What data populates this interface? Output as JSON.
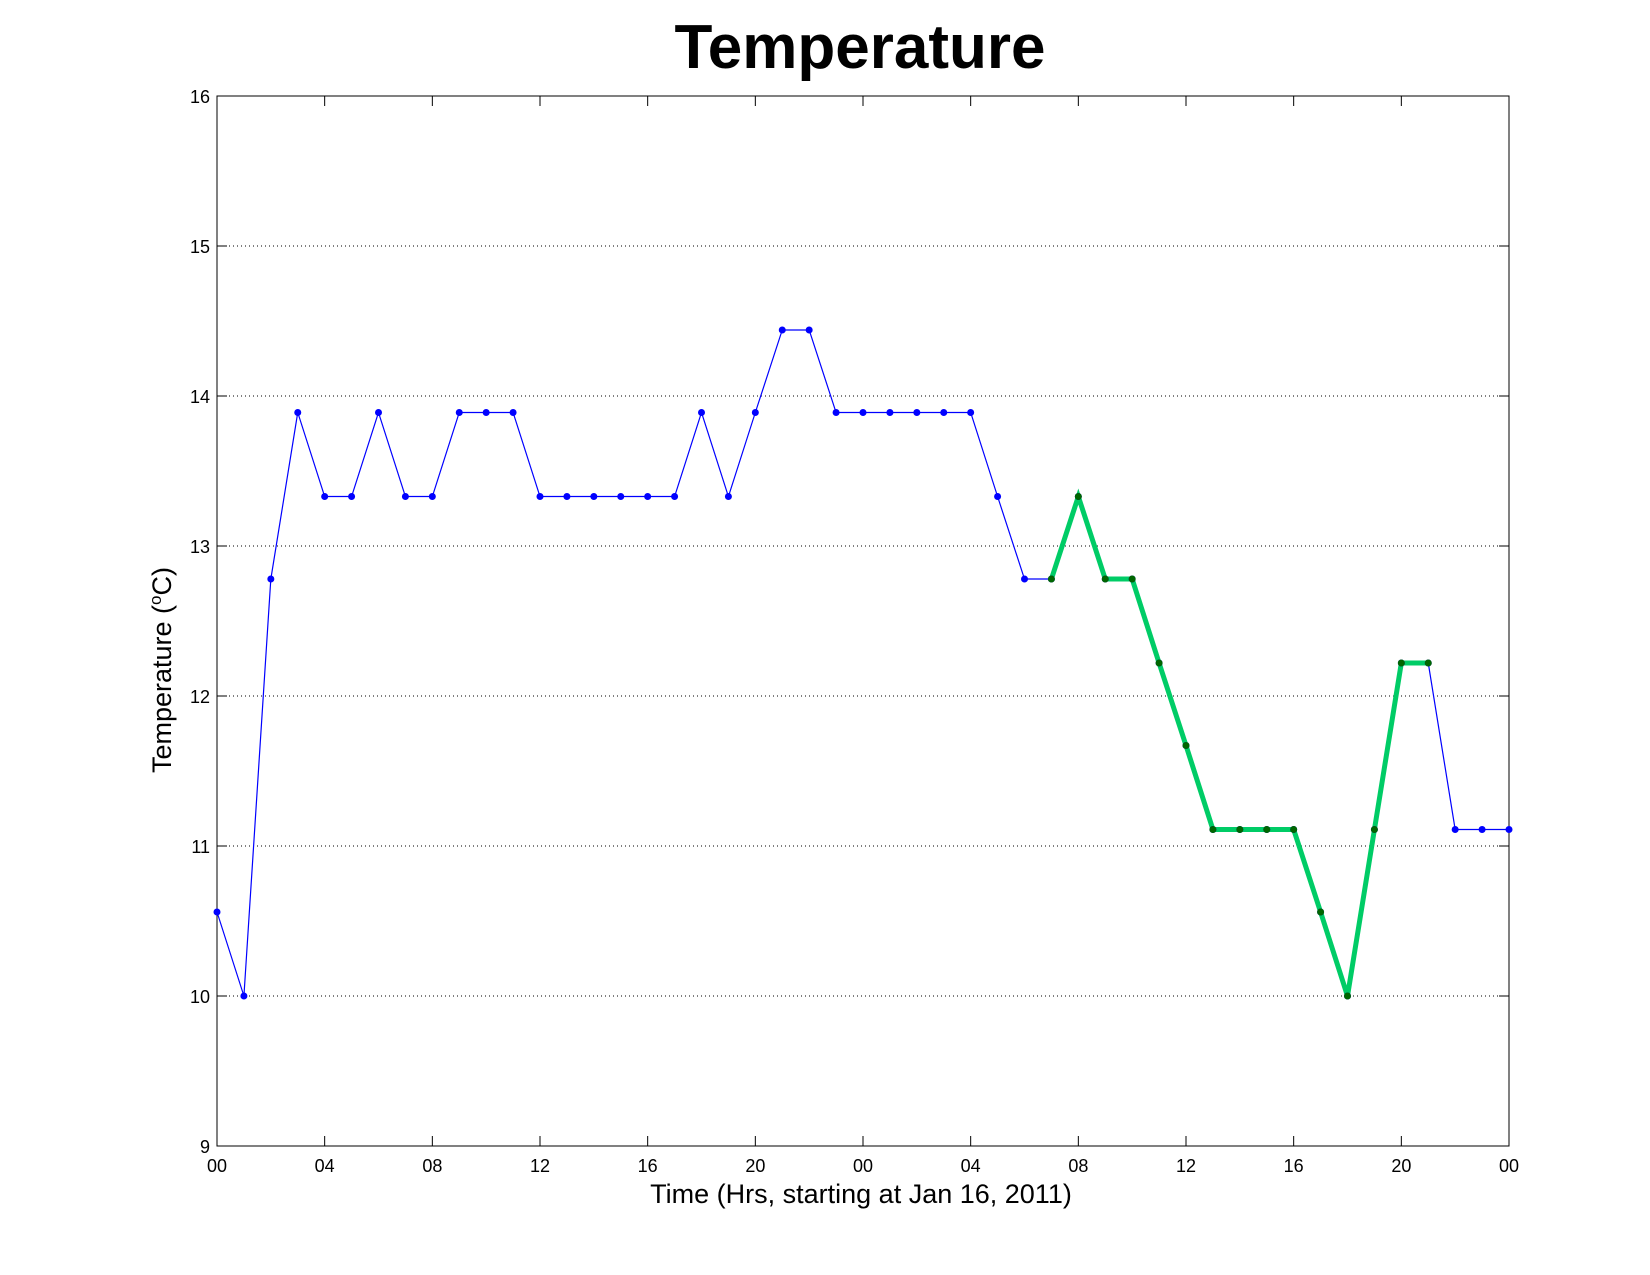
{
  "chart_data": {
    "type": "line",
    "title": "Temperature",
    "xlabel": "Time (Hrs, starting at Jan 16, 2011)",
    "ylabel_main": "Temperature (",
    "ylabel_degree": "o",
    "ylabel_unit": "C)",
    "ylim": [
      9,
      16
    ],
    "xlim": [
      0,
      48
    ],
    "grid": "horizontal-dotted",
    "x_ticks": [
      0,
      4,
      8,
      12,
      16,
      20,
      24,
      28,
      32,
      36,
      40,
      44,
      48
    ],
    "x_tick_labels": [
      "00",
      "04",
      "08",
      "12",
      "16",
      "20",
      "00",
      "04",
      "08",
      "12",
      "16",
      "20",
      "00"
    ],
    "y_ticks": [
      9,
      10,
      11,
      12,
      13,
      14,
      15,
      16
    ],
    "y_tick_labels": [
      "9",
      "10",
      "11",
      "12",
      "13",
      "14",
      "15",
      "16"
    ],
    "colors": {
      "series_line": "#0000ff",
      "series_marker": "#0000ff",
      "highlight_line": "#00cc66",
      "highlight_marker": "#006600"
    },
    "series": [
      {
        "x": [
          0,
          1,
          2,
          3,
          4,
          5,
          6,
          7,
          8,
          9,
          10,
          11,
          12,
          13,
          14,
          15,
          16,
          17,
          18,
          19,
          20,
          21,
          22,
          23,
          24,
          25,
          26,
          27,
          28,
          29,
          30,
          31,
          32,
          33,
          34,
          35,
          36,
          37,
          38,
          39,
          40,
          41,
          42,
          43,
          44,
          45,
          46,
          47,
          48
        ],
        "values": [
          10.56,
          10.0,
          12.78,
          13.89,
          13.33,
          13.33,
          13.89,
          13.33,
          13.33,
          13.89,
          13.89,
          13.89,
          13.33,
          13.33,
          13.33,
          13.33,
          13.33,
          13.33,
          13.89,
          13.33,
          13.89,
          14.44,
          14.44,
          13.89,
          13.89,
          13.89,
          13.89,
          13.89,
          13.89,
          13.33,
          12.78,
          12.78,
          13.33,
          12.78,
          12.78,
          12.22,
          11.67,
          11.11,
          11.11,
          11.11,
          11.11,
          10.56,
          10.0,
          11.11,
          12.22,
          12.22,
          11.11,
          11.11,
          11.11
        ]
      },
      {
        "x": [
          31,
          32,
          33,
          34,
          35,
          36,
          37,
          38,
          39,
          40,
          41,
          42,
          43,
          44,
          45
        ],
        "values": [
          12.78,
          13.33,
          12.78,
          12.78,
          12.22,
          11.67,
          11.11,
          11.11,
          11.11,
          11.11,
          10.56,
          10.0,
          11.11,
          12.22,
          12.22
        ]
      }
    ]
  }
}
